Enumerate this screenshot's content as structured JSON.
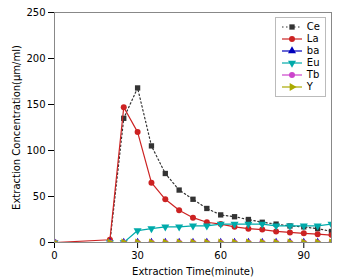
{
  "chart_data": {
    "type": "line",
    "xlabel": "Extraction Time(minute)",
    "ylabel": "Extraction Concentration(μm/ml)",
    "xlim": [
      0,
      100
    ],
    "ylim": [
      0,
      250
    ],
    "xticks": [
      0,
      30,
      60,
      90
    ],
    "yticks": [
      0,
      50,
      100,
      150,
      200,
      250
    ],
    "legend": "upper right",
    "x": [
      0,
      20,
      25,
      30,
      35,
      40,
      45,
      50,
      55,
      60,
      65,
      70,
      75,
      80,
      85,
      90,
      95,
      100
    ],
    "series": [
      {
        "name": "Ce",
        "color": "#333333",
        "marker": "square",
        "line_style": "dotted",
        "values": [
          0,
          0,
          135,
          168,
          105,
          75,
          57,
          47,
          37,
          30,
          28,
          25,
          22,
          20,
          18,
          17,
          15,
          12
        ]
      },
      {
        "name": "La",
        "color": "#cc2222",
        "marker": "circle",
        "line_style": "solid",
        "values": [
          0,
          3,
          147,
          120,
          65,
          47,
          35,
          27,
          22,
          20,
          17,
          15,
          14,
          12,
          11,
          10,
          9,
          8
        ]
      },
      {
        "name": "ba",
        "color": "#0000bb",
        "marker": "triangle-up",
        "line_style": "solid",
        "values": [
          0,
          0,
          0,
          0,
          0,
          0,
          0,
          0,
          0,
          0,
          0,
          0,
          0,
          0,
          0,
          0,
          0,
          0
        ]
      },
      {
        "name": "Eu",
        "color": "#00aaaa",
        "marker": "triangle-down",
        "line_style": "solid",
        "values": [
          0,
          0,
          0,
          13,
          15,
          17,
          17,
          18,
          18,
          20,
          20,
          20,
          20,
          18,
          18,
          18,
          18,
          20
        ]
      },
      {
        "name": "Tb",
        "color": "#cc44cc",
        "marker": "circle",
        "line_style": "solid",
        "values": [
          0,
          0,
          0,
          0,
          0,
          0,
          0,
          0,
          0,
          0,
          0,
          0,
          0,
          0,
          0,
          0,
          0,
          0
        ]
      },
      {
        "name": "Y",
        "color": "#aaaa00",
        "marker": "triangle-right",
        "line_style": "solid",
        "values": [
          0,
          0,
          0,
          0,
          0,
          0,
          0,
          0,
          0,
          0,
          0,
          0,
          0,
          0,
          0,
          0,
          0,
          0
        ]
      }
    ]
  }
}
